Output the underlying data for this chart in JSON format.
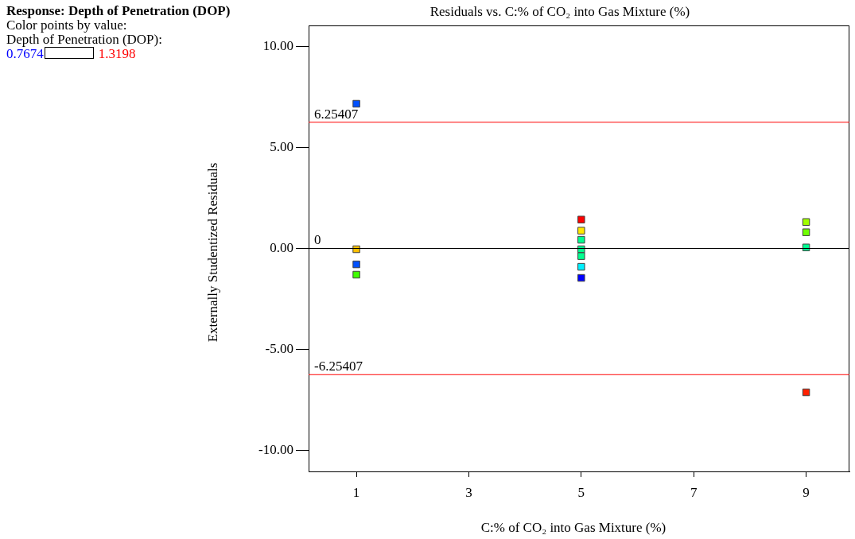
{
  "chart_data": {
    "type": "scatter",
    "title": "Residuals vs. C:% of CO₂ into Gas Mixture (%)",
    "subtitle": "Response: Depth of Penetration (DOP)",
    "annotations": [
      "Color points by value:",
      "Depth of Penetration (DOP):",
      "0.7674",
      "1.3198"
    ],
    "xlabel": "C:% of CO₂ into Gas Mixture (%)",
    "ylabel": "Externally Studentized Residuals",
    "x": [
      1,
      1,
      1,
      1,
      5,
      5,
      5,
      5,
      5,
      5,
      5,
      9,
      9,
      9,
      9
    ],
    "values": [
      7.17,
      -0.04,
      -0.79,
      -1.3,
      1.43,
      0.88,
      0.43,
      -0.04,
      -0.38,
      -0.91,
      -1.46,
      1.31,
      0.8,
      0.05,
      -7.13
    ],
    "colors": [
      "#0050ff",
      "#ffc000",
      "#0050ff",
      "#40ff00",
      "#ff0000",
      "#ffe800",
      "#00ff90",
      "#00ff90",
      "#00ff90",
      "#00f0ff",
      "#0000ff",
      "#a0ff00",
      "#70ff00",
      "#00ff90",
      "#ff2000"
    ],
    "marker": "square",
    "xlim": [
      0.15,
      9.77
    ],
    "xticks": [
      1,
      3,
      5,
      7,
      9
    ],
    "ylim": [
      -11.05,
      11.05
    ],
    "yticks": [
      {
        "value": -10,
        "label": "-10.00"
      },
      {
        "value": -5,
        "label": "-5.00"
      },
      {
        "value": 0,
        "label": "0.00"
      },
      {
        "value": 5,
        "label": "5.00"
      },
      {
        "value": 10,
        "label": "10.00"
      }
    ],
    "ref_lines": [
      {
        "axis": "y",
        "value": 6.25407,
        "label": "6.25407",
        "color": "#ff0000"
      },
      {
        "axis": "y",
        "value": 0,
        "label": "0",
        "color": "#000000"
      },
      {
        "axis": "y",
        "value": -6.25407,
        "label": "-6.25407",
        "color": "#ff0000"
      }
    ],
    "grid": false,
    "legend": false
  }
}
